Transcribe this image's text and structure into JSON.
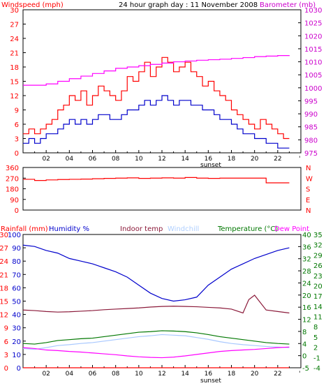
{
  "chart_data": [
    {
      "type": "line",
      "title": "24 hour graph day : 11 November 2008",
      "left_axis_label": "Windspeed (mph)",
      "right_axis_label": "Barometer (mb)",
      "x_ticks": [
        "02",
        "04",
        "06",
        "08",
        "10",
        "12",
        "14",
        "16",
        "18",
        "20",
        "22"
      ],
      "x_annotation": "sunset",
      "ylim_left": [
        0,
        30
      ],
      "yticks_left": [
        "0",
        "3",
        "6",
        "9",
        "12",
        "15",
        "18",
        "21",
        "24",
        "27",
        "30"
      ],
      "ylim_right": [
        975,
        1030
      ],
      "yticks_right": [
        "975",
        "980",
        "985",
        "990",
        "995",
        "1000",
        "1005",
        "1010",
        "1015",
        "1020",
        "1025",
        "1030"
      ],
      "grid": false,
      "series": [
        {
          "name": "Gust",
          "color": "#ff0000",
          "axis": "left",
          "x": [
            0,
            0.5,
            1,
            1.5,
            2,
            2.5,
            3,
            3.5,
            4,
            4.5,
            5,
            5.5,
            6,
            6.5,
            7,
            7.5,
            8,
            8.5,
            9,
            9.5,
            10,
            10.5,
            11,
            11.5,
            12,
            12.5,
            13,
            13.5,
            14,
            14.5,
            15,
            15.5,
            16,
            16.5,
            17,
            17.5,
            18,
            18.5,
            19,
            19.5,
            20,
            20.5,
            21,
            21.5,
            22,
            22.5,
            23
          ],
          "values": [
            4,
            5,
            4,
            5,
            6,
            7,
            9,
            10,
            12,
            11,
            13,
            10,
            12,
            14,
            13,
            12,
            11,
            13,
            16,
            15,
            17,
            19,
            16,
            18,
            20,
            19,
            17,
            18,
            19,
            17,
            16,
            14,
            15,
            13,
            12,
            11,
            9,
            8,
            7,
            6,
            5,
            7,
            6,
            5,
            4,
            3,
            3
          ]
        },
        {
          "name": "Average",
          "color": "#0000cc",
          "axis": "left",
          "x": [
            0,
            0.5,
            1,
            1.5,
            2,
            2.5,
            3,
            3.5,
            4,
            4.5,
            5,
            5.5,
            6,
            6.5,
            7,
            7.5,
            8,
            8.5,
            9,
            9.5,
            10,
            10.5,
            11,
            11.5,
            12,
            12.5,
            13,
            13.5,
            14,
            14.5,
            15,
            15.5,
            16,
            16.5,
            17,
            17.5,
            18,
            18.5,
            19,
            19.5,
            20,
            20.5,
            21,
            21.5,
            22,
            22.5,
            23
          ],
          "values": [
            2,
            3,
            2,
            3,
            4,
            4,
            5,
            6,
            7,
            6,
            7,
            6,
            7,
            8,
            8,
            7,
            7,
            8,
            9,
            9,
            10,
            11,
            10,
            11,
            12,
            11,
            10,
            11,
            11,
            10,
            10,
            9,
            9,
            8,
            7,
            7,
            6,
            5,
            4,
            4,
            3,
            3,
            2,
            2,
            1,
            1,
            1
          ]
        },
        {
          "name": "Barometer",
          "color": "#ff00ff",
          "axis": "right",
          "x": [
            0,
            2,
            3,
            4,
            5,
            6,
            7,
            8,
            9,
            10,
            11,
            12,
            13,
            14,
            15,
            16,
            17,
            18,
            19,
            20,
            21,
            22,
            23
          ],
          "values": [
            1001,
            1001.5,
            1002.5,
            1003.5,
            1004.5,
            1005.5,
            1006.5,
            1007.5,
            1008,
            1008.5,
            1009,
            1009.5,
            1010,
            1010.3,
            1010.6,
            1010.8,
            1011,
            1011.3,
            1011.6,
            1012,
            1012.2,
            1012.4,
            1012.5
          ]
        }
      ]
    },
    {
      "type": "line",
      "ylim": [
        0,
        360
      ],
      "yticks": [
        "360",
        "270",
        "180",
        "90",
        "0"
      ],
      "right_labels": [
        "N",
        "W",
        "S",
        "E",
        "N"
      ],
      "series": [
        {
          "name": "Wind direction",
          "color": "#ff0000",
          "x": [
            0,
            1,
            2,
            3,
            4,
            5,
            6,
            7,
            8,
            9,
            10,
            11,
            12,
            13,
            14,
            15,
            16,
            17,
            18,
            19,
            20,
            21,
            22,
            23
          ],
          "values": [
            260,
            250,
            255,
            258,
            260,
            262,
            265,
            268,
            270,
            272,
            268,
            270,
            272,
            270,
            275,
            270,
            268,
            270,
            270,
            270,
            270,
            230,
            230,
            230
          ]
        }
      ]
    },
    {
      "type": "line",
      "labels": {
        "rainfall": "Rainfall (mm)",
        "humidity": "Humidity %",
        "indoor": "Indoor temp",
        "windchill": "Windchill",
        "temperature": "Temperature (°C)",
        "dewpoint": "Dew Point"
      },
      "x_ticks": [
        "02",
        "04",
        "06",
        "08",
        "10",
        "12",
        "14",
        "16",
        "18",
        "20",
        "22"
      ],
      "x_annotation": "sunset",
      "yticks_rain": [
        "0",
        "3",
        "6",
        "9",
        "12",
        "15",
        "18",
        "21",
        "24",
        "27",
        "30"
      ],
      "yticks_humidity": [
        "0",
        "10",
        "20",
        "30",
        "40",
        "50",
        "60",
        "70",
        "80",
        "90",
        "100"
      ],
      "yticks_temp": [
        "-5",
        "0",
        "4",
        "8",
        "12",
        "16",
        "20",
        "24",
        "28",
        "32",
        "36",
        "40"
      ],
      "yticks_temp_outer": [
        "-4",
        "-1",
        "2",
        "5",
        "8",
        "11",
        "14",
        "17",
        "20",
        "23",
        "26",
        "29",
        "32",
        "35"
      ],
      "ylim_humidity": [
        0,
        100
      ],
      "ylim_temp": [
        -5,
        40
      ],
      "series": [
        {
          "name": "Humidity",
          "color": "#0000cc",
          "axis": "humidity",
          "x": [
            0,
            1,
            2,
            3,
            4,
            5,
            6,
            7,
            8,
            9,
            10,
            11,
            12,
            13,
            14,
            15,
            16,
            17,
            18,
            19,
            20,
            21,
            22,
            23
          ],
          "values": [
            92,
            91,
            88,
            86,
            82,
            80,
            78,
            75,
            72,
            68,
            62,
            56,
            52,
            50,
            51,
            53,
            62,
            68,
            74,
            78,
            82,
            85,
            88,
            90
          ]
        },
        {
          "name": "Indoor temp",
          "color": "#8b1a3a",
          "axis": "temp",
          "x": [
            0,
            1,
            2,
            3,
            4,
            5,
            6,
            7,
            8,
            9,
            10,
            11,
            12,
            13,
            14,
            15,
            16,
            17,
            18,
            19,
            19.5,
            20,
            20.5,
            21,
            22,
            23
          ],
          "values": [
            14.5,
            14.3,
            14.0,
            13.8,
            13.9,
            14.1,
            14.3,
            14.6,
            14.8,
            15.0,
            15.2,
            15.5,
            15.7,
            15.8,
            15.7,
            15.6,
            15.4,
            15.2,
            14.8,
            13.5,
            18,
            19.5,
            17,
            14.5,
            14,
            13.5
          ]
        },
        {
          "name": "Temperature",
          "color": "#007700",
          "axis": "temp",
          "x": [
            0,
            1,
            2,
            3,
            4,
            5,
            6,
            7,
            8,
            9,
            10,
            11,
            12,
            13,
            14,
            15,
            16,
            17,
            18,
            19,
            20,
            21,
            22,
            23
          ],
          "values": [
            3.2,
            3.0,
            3.5,
            4.2,
            4.5,
            4.8,
            5.0,
            5.5,
            6.0,
            6.5,
            7.0,
            7.2,
            7.5,
            7.4,
            7.2,
            6.8,
            6.2,
            5.5,
            5.0,
            4.5,
            4.0,
            3.5,
            3.2,
            3.0
          ]
        },
        {
          "name": "Windchill",
          "color": "#a8c8ff",
          "axis": "temp",
          "x": [
            0,
            1,
            2,
            3,
            4,
            5,
            6,
            7,
            8,
            9,
            10,
            11,
            12,
            13,
            14,
            15,
            16,
            17,
            18,
            19,
            20,
            21,
            22,
            23
          ],
          "values": [
            1.5,
            1.2,
            1.8,
            2.5,
            2.8,
            3.2,
            3.5,
            4.0,
            4.5,
            5.0,
            5.5,
            5.8,
            6.2,
            6.0,
            5.8,
            5.2,
            4.6,
            3.8,
            3.2,
            2.8,
            2.5,
            2.2,
            2.0,
            1.8
          ]
        },
        {
          "name": "Dew Point",
          "color": "#ff00ff",
          "axis": "temp",
          "x": [
            0,
            1,
            2,
            3,
            4,
            5,
            6,
            7,
            8,
            9,
            10,
            11,
            12,
            13,
            14,
            15,
            16,
            17,
            18,
            19,
            20,
            21,
            22,
            23
          ],
          "values": [
            1.8,
            1.5,
            1.0,
            0.8,
            0.5,
            0.3,
            0.0,
            -0.3,
            -0.6,
            -1.0,
            -1.3,
            -1.5,
            -1.6,
            -1.4,
            -1.0,
            -0.5,
            0.0,
            0.5,
            0.8,
            1.0,
            1.2,
            1.5,
            1.8,
            2.0
          ]
        },
        {
          "name": "Rainfall",
          "color": "#ff0000",
          "axis": "rain",
          "x": [
            0,
            23
          ],
          "values": [
            0,
            0
          ]
        }
      ]
    }
  ]
}
